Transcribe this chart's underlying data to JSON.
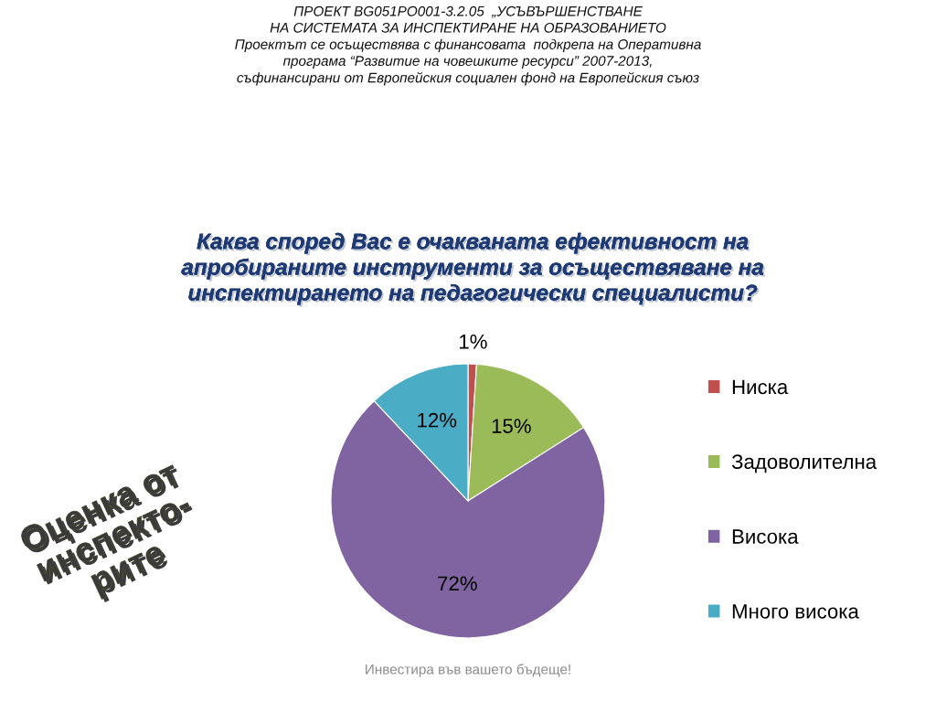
{
  "chart_data": {
    "type": "pie",
    "title": "Каква според Вас е очакваната ефективност на\nапробираните инструменти за осъществяване на\nинспектирането на педагогически специалисти?",
    "categories": [
      "Ниска",
      "Задоволителна",
      "Висока",
      "Много висока"
    ],
    "values": [
      1,
      15,
      72,
      12
    ],
    "colors": [
      "#c0504d",
      "#9bbb59",
      "#8064a2",
      "#4bacc6"
    ],
    "value_labels": [
      "1%",
      "15%",
      "72%",
      "12%"
    ],
    "legend": "right",
    "annotations": [
      "ПРОЕКТ BG051PO001-3.2.05  „УСЪВЪРШЕНСТВАНЕ\nНА СИСТЕМАТА ЗА ИНСПЕКТИРАНЕ НА ОБРАЗОВАНИЕТО\nПроектът се осъществява с финансовата  подкрепа на Оперативна\nпрограма “Развитие на човешките ресурси” 2007-2013,\nсъфинансирани от Европейския социален фонд на Европейския съюз",
      "Оценка от\nинспекто-\nрите",
      "Инвестира във вашето бъдеще!"
    ]
  }
}
